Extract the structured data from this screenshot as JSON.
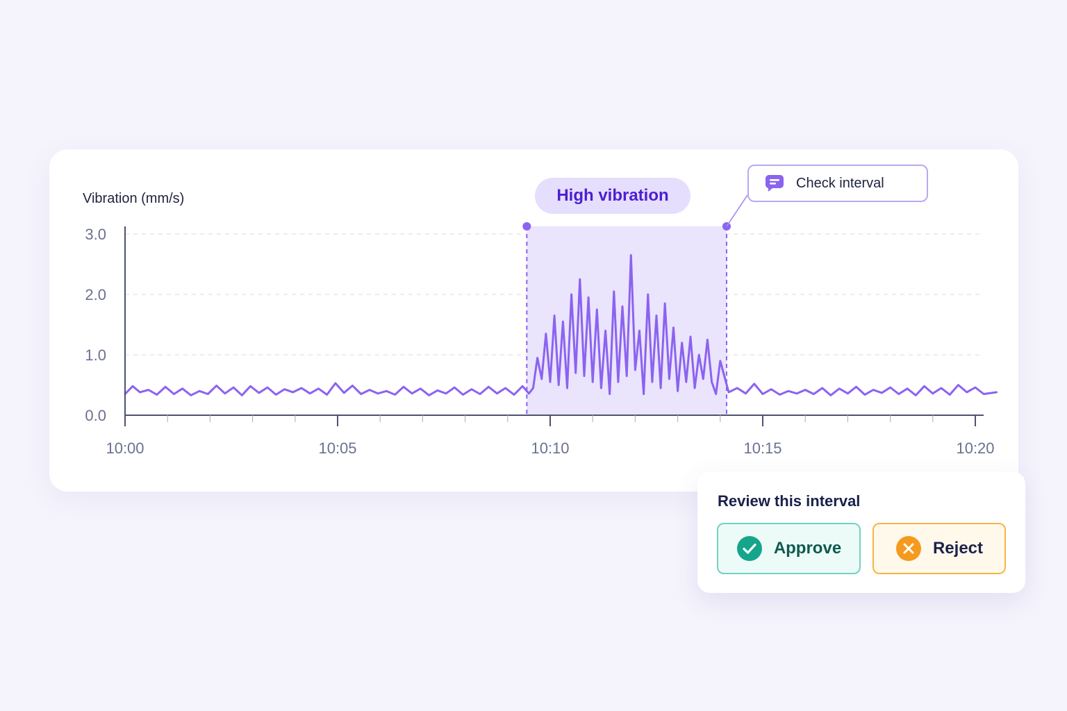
{
  "chart_data": {
    "type": "line",
    "ylabel": "Vibration (mm/s)",
    "xlabel": "",
    "yticks": [
      "3.0",
      "2.0",
      "1.0",
      "0.0"
    ],
    "ylim": [
      0,
      3.0
    ],
    "xticks": [
      "10:00",
      "10:05",
      "10:10",
      "10:15",
      "10:20"
    ],
    "xlim_minutes": [
      0,
      20.5
    ],
    "grid": true,
    "series": [
      {
        "color": "#8b63f0",
        "points": [
          [
            0.0,
            0.35
          ],
          [
            0.18,
            0.48
          ],
          [
            0.35,
            0.38
          ],
          [
            0.55,
            0.42
          ],
          [
            0.75,
            0.34
          ],
          [
            0.95,
            0.47
          ],
          [
            1.15,
            0.35
          ],
          [
            1.35,
            0.44
          ],
          [
            1.55,
            0.33
          ],
          [
            1.75,
            0.4
          ],
          [
            1.95,
            0.35
          ],
          [
            2.15,
            0.49
          ],
          [
            2.35,
            0.36
          ],
          [
            2.55,
            0.46
          ],
          [
            2.75,
            0.33
          ],
          [
            2.95,
            0.48
          ],
          [
            3.15,
            0.37
          ],
          [
            3.35,
            0.46
          ],
          [
            3.55,
            0.34
          ],
          [
            3.75,
            0.43
          ],
          [
            3.95,
            0.38
          ],
          [
            4.15,
            0.45
          ],
          [
            4.35,
            0.36
          ],
          [
            4.55,
            0.44
          ],
          [
            4.75,
            0.34
          ],
          [
            4.95,
            0.53
          ],
          [
            5.15,
            0.37
          ],
          [
            5.35,
            0.49
          ],
          [
            5.55,
            0.35
          ],
          [
            5.75,
            0.42
          ],
          [
            5.95,
            0.36
          ],
          [
            6.15,
            0.4
          ],
          [
            6.35,
            0.34
          ],
          [
            6.55,
            0.47
          ],
          [
            6.75,
            0.36
          ],
          [
            6.95,
            0.44
          ],
          [
            7.15,
            0.33
          ],
          [
            7.35,
            0.41
          ],
          [
            7.55,
            0.36
          ],
          [
            7.75,
            0.46
          ],
          [
            7.95,
            0.34
          ],
          [
            8.15,
            0.43
          ],
          [
            8.35,
            0.35
          ],
          [
            8.55,
            0.47
          ],
          [
            8.75,
            0.36
          ],
          [
            8.95,
            0.45
          ],
          [
            9.15,
            0.34
          ],
          [
            9.35,
            0.48
          ],
          [
            9.5,
            0.36
          ],
          [
            9.6,
            0.45
          ],
          [
            9.7,
            0.95
          ],
          [
            9.8,
            0.6
          ],
          [
            9.9,
            1.35
          ],
          [
            10.0,
            0.55
          ],
          [
            10.1,
            1.65
          ],
          [
            10.2,
            0.5
          ],
          [
            10.3,
            1.55
          ],
          [
            10.4,
            0.45
          ],
          [
            10.5,
            2.0
          ],
          [
            10.6,
            0.7
          ],
          [
            10.7,
            2.25
          ],
          [
            10.8,
            0.65
          ],
          [
            10.9,
            1.95
          ],
          [
            11.0,
            0.55
          ],
          [
            11.1,
            1.75
          ],
          [
            11.2,
            0.45
          ],
          [
            11.3,
            1.4
          ],
          [
            11.4,
            0.35
          ],
          [
            11.5,
            2.05
          ],
          [
            11.6,
            0.55
          ],
          [
            11.7,
            1.8
          ],
          [
            11.8,
            0.65
          ],
          [
            11.9,
            2.65
          ],
          [
            12.0,
            0.75
          ],
          [
            12.1,
            1.4
          ],
          [
            12.2,
            0.35
          ],
          [
            12.3,
            2.0
          ],
          [
            12.4,
            0.55
          ],
          [
            12.5,
            1.65
          ],
          [
            12.6,
            0.45
          ],
          [
            12.7,
            1.85
          ],
          [
            12.8,
            0.6
          ],
          [
            12.9,
            1.45
          ],
          [
            13.0,
            0.4
          ],
          [
            13.1,
            1.2
          ],
          [
            13.2,
            0.55
          ],
          [
            13.3,
            1.3
          ],
          [
            13.4,
            0.45
          ],
          [
            13.5,
            1.0
          ],
          [
            13.6,
            0.6
          ],
          [
            13.7,
            1.25
          ],
          [
            13.8,
            0.55
          ],
          [
            13.9,
            0.35
          ],
          [
            14.0,
            0.9
          ],
          [
            14.2,
            0.38
          ],
          [
            14.4,
            0.45
          ],
          [
            14.6,
            0.36
          ],
          [
            14.8,
            0.52
          ],
          [
            15.0,
            0.35
          ],
          [
            15.2,
            0.43
          ],
          [
            15.4,
            0.34
          ],
          [
            15.6,
            0.4
          ],
          [
            15.8,
            0.36
          ],
          [
            16.0,
            0.42
          ],
          [
            16.2,
            0.35
          ],
          [
            16.4,
            0.45
          ],
          [
            16.6,
            0.33
          ],
          [
            16.8,
            0.44
          ],
          [
            17.0,
            0.36
          ],
          [
            17.2,
            0.47
          ],
          [
            17.4,
            0.34
          ],
          [
            17.6,
            0.42
          ],
          [
            17.8,
            0.37
          ],
          [
            18.0,
            0.46
          ],
          [
            18.2,
            0.35
          ],
          [
            18.4,
            0.44
          ],
          [
            18.6,
            0.33
          ],
          [
            18.8,
            0.48
          ],
          [
            19.0,
            0.36
          ],
          [
            19.2,
            0.45
          ],
          [
            19.4,
            0.34
          ],
          [
            19.6,
            0.5
          ],
          [
            19.8,
            0.38
          ],
          [
            20.0,
            0.46
          ],
          [
            20.2,
            0.35
          ],
          [
            20.5,
            0.38
          ]
        ]
      }
    ],
    "highlight": {
      "label": "High vibration",
      "start_minutes": 9.45,
      "end_minutes": 14.15,
      "fill": "#ebe4fd",
      "border": "#8b63f0"
    },
    "callout": {
      "label": "Check interval"
    }
  },
  "review": {
    "title": "Review this interval",
    "approve_label": "Approve",
    "reject_label": "Reject"
  },
  "icons": {
    "callout": "chat-bubble-icon",
    "approve": "check-circle-icon",
    "reject": "x-circle-icon"
  },
  "colors": {
    "accent": "#8b63f0",
    "approve": "#14a58b",
    "reject": "#f59a1d"
  }
}
